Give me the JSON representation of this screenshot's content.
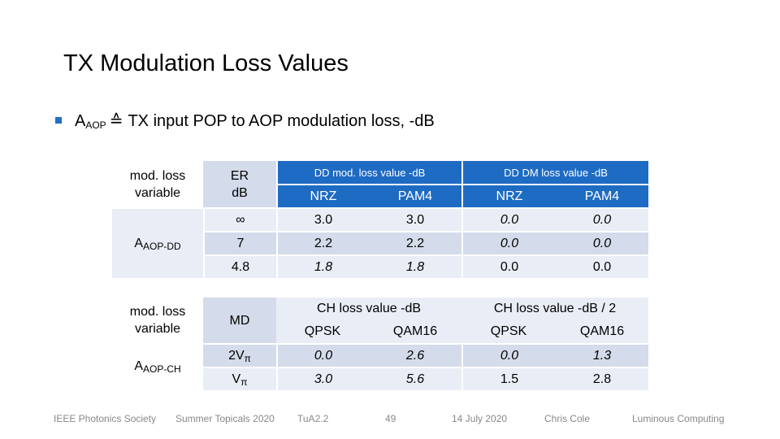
{
  "slide": {
    "title": "TX Modulation Loss Values",
    "bullet": {
      "main": "A",
      "sub": "AOP",
      "symbol": "≙",
      "text": "TX input POP to AOP modulation loss, -dB"
    }
  },
  "table1": {
    "var_label_line1": "mod. loss",
    "var_label_line2": "variable",
    "er_label_line1": "ER",
    "er_label_line2": "dB",
    "group1": "DD mod. loss value -dB",
    "group2": "DD DM loss value -dB",
    "sub_headers": [
      "NRZ",
      "PAM4",
      "NRZ",
      "PAM4"
    ],
    "row_label_main": "A",
    "row_label_sub": "AOP-DD",
    "rows": [
      {
        "er": "∞",
        "values": [
          "3.0",
          "3.0",
          "0.0",
          "0.0"
        ]
      },
      {
        "er": "7",
        "values": [
          "2.2",
          "2.2",
          "0.0",
          "0.0"
        ]
      },
      {
        "er": "4.8",
        "values": [
          "1.8",
          "1.8",
          "0.0",
          "0.0"
        ]
      }
    ]
  },
  "table2": {
    "var_label_line1": "mod. loss",
    "var_label_line2": "variable",
    "md_label": "MD",
    "group1": "CH loss value -dB",
    "group2": "CH loss value -dB / 2",
    "sub_headers": [
      "QPSK",
      "QAM16",
      "QPSK",
      "QAM16"
    ],
    "row_label_main": "A",
    "row_label_sub": "AOP-CH",
    "rows": [
      {
        "md_main": "2V",
        "md_sub": "π",
        "values": [
          "0.0",
          "2.6",
          "0.0",
          "1.3"
        ]
      },
      {
        "md_main": "V",
        "md_sub": "π",
        "values": [
          "3.0",
          "5.6",
          "1.5",
          "2.8"
        ]
      }
    ]
  },
  "footer": {
    "society": "IEEE Photonics Society",
    "event": "Summer Topicals 2020",
    "session": "TuA2.2",
    "page": "49",
    "date": "14 July 2020",
    "author": "Chris Cole",
    "company": "Luminous Computing"
  },
  "colors": {
    "header_blue": "#1e6bc4",
    "row_dark": "#d4dbea",
    "row_light": "#e9edf5",
    "bullet": "#1f6fc8"
  }
}
